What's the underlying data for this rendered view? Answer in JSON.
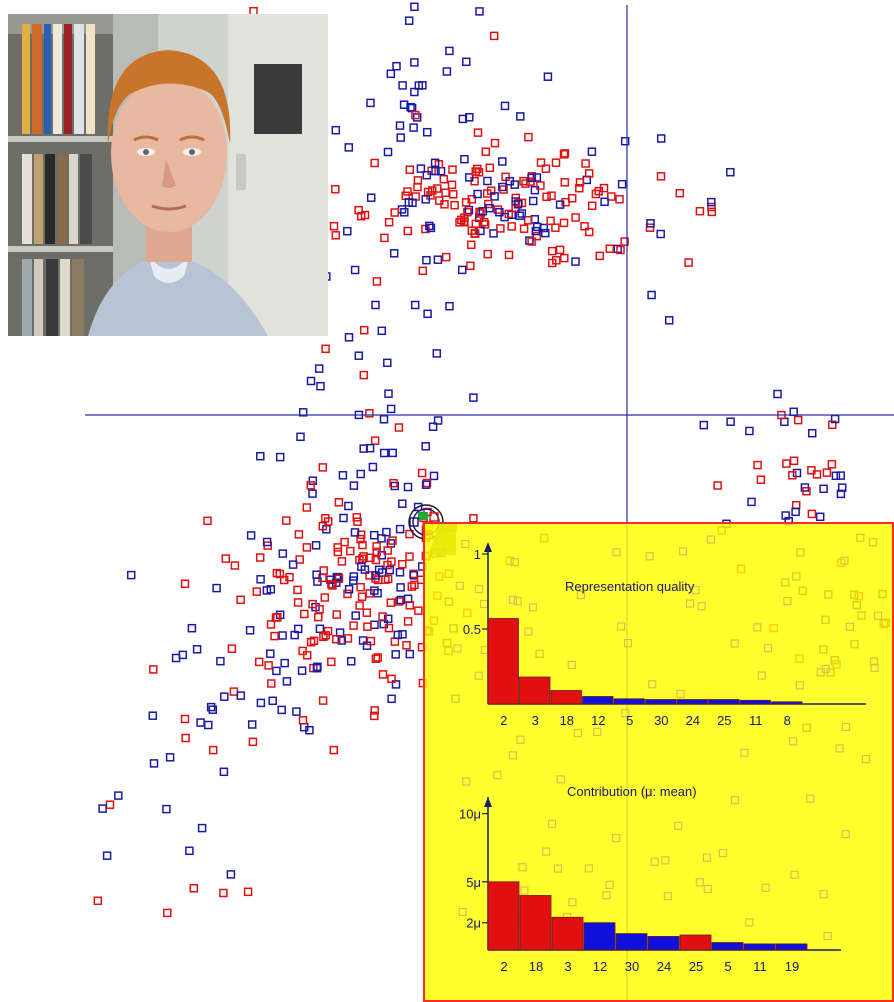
{
  "chart_data": [
    {
      "type": "scatter",
      "title": "",
      "xlabel": "",
      "ylabel": "",
      "grid": false,
      "series": [
        {
          "name": "",
          "color": "#e01010"
        },
        {
          "name": "",
          "color": "#1a1aa8"
        }
      ],
      "crosshair": {
        "vertical": true,
        "horizontal": true,
        "color": "#2a2ab0"
      }
    },
    {
      "type": "bar",
      "title": "Representation quality",
      "categories": [
        "2",
        "3",
        "18",
        "12",
        "5",
        "30",
        "24",
        "25",
        "11",
        "8"
      ],
      "values": [
        0.57,
        0.18,
        0.09,
        0.05,
        0.035,
        0.03,
        0.03,
        0.03,
        0.025,
        0.015
      ],
      "bar_colors": [
        "#e01010",
        "#e01010",
        "#e01010",
        "#1010dd",
        "#1010dd",
        "#1010dd",
        "#1010dd",
        "#1010dd",
        "#1010dd",
        "#1010dd"
      ],
      "yticks": [
        {
          "value": 1,
          "label": "1"
        },
        {
          "value": 0.5,
          "label": "0.5"
        }
      ],
      "ylim": [
        0,
        1.1
      ]
    },
    {
      "type": "bar",
      "title": "Contribution (μ: mean)",
      "categories": [
        "2",
        "18",
        "3",
        "12",
        "30",
        "24",
        "25",
        "5",
        "11",
        "19"
      ],
      "values": [
        5.0,
        4.0,
        2.4,
        2.0,
        1.2,
        1.0,
        1.1,
        0.55,
        0.45,
        0.45
      ],
      "bar_colors": [
        "#e01010",
        "#e01010",
        "#e01010",
        "#1010dd",
        "#1010dd",
        "#1010dd",
        "#e01010",
        "#1010dd",
        "#1010dd",
        "#1010dd"
      ],
      "yticks": [
        {
          "value": 10,
          "label": "10μ"
        },
        {
          "value": 5,
          "label": "5μ"
        },
        {
          "value": 2,
          "label": "2μ"
        }
      ],
      "ylim": [
        0,
        11
      ]
    }
  ],
  "colors": {
    "tooltip_bg": "#ffff00",
    "tooltip_border": "#ff2a2a",
    "axis": "#1a1a6a"
  },
  "icons": {
    "photo": "face-photo-icon",
    "selection": "selected-point-marker-icon"
  }
}
